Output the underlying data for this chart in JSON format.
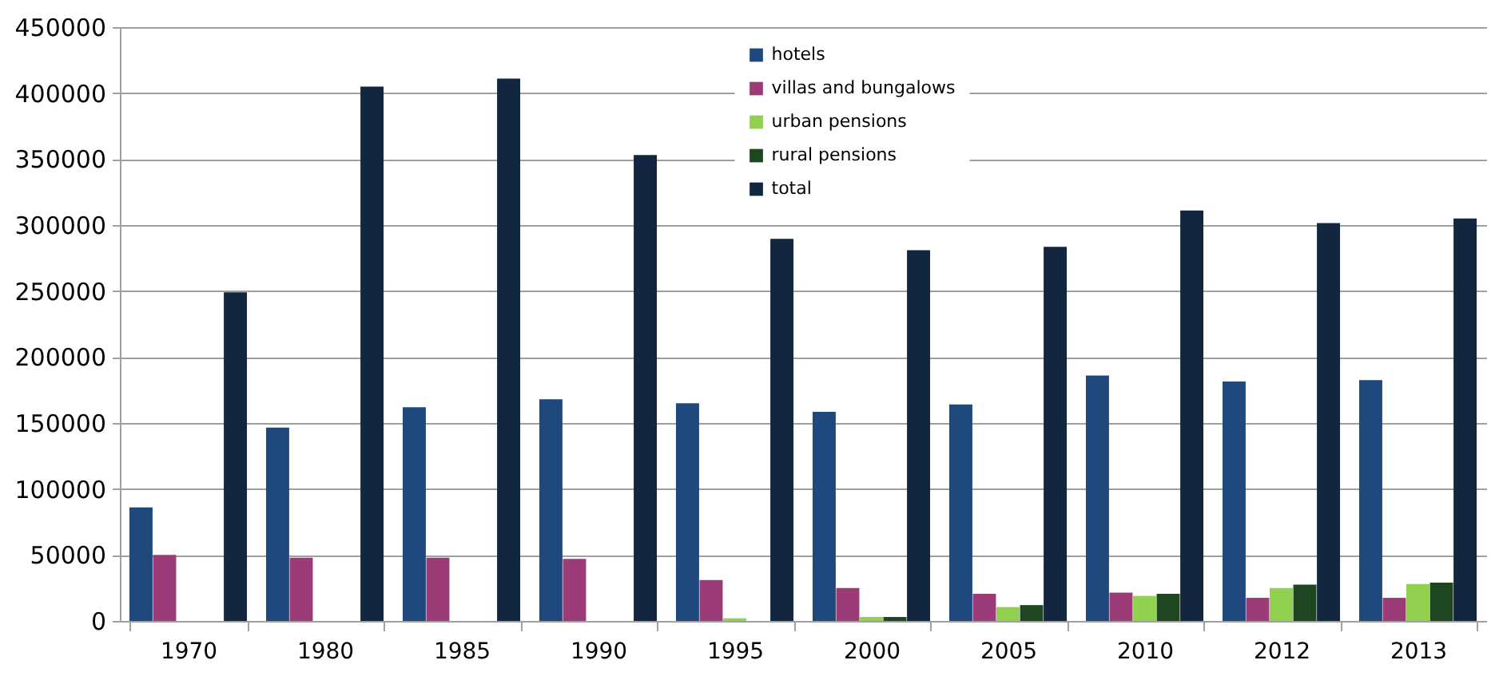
{
  "chart_data": {
    "type": "bar",
    "categories": [
      "1970",
      "1980",
      "1985",
      "1990",
      "1995",
      "2000",
      "2005",
      "2010",
      "2012",
      "2013"
    ],
    "series": [
      {
        "name": "hotels",
        "color": "#1f497d",
        "values": [
          86000,
          146500,
          162000,
          168000,
          165000,
          158500,
          164000,
          186000,
          181500,
          182500
        ]
      },
      {
        "name": "villas and bungalows",
        "color": "#9b3c78",
        "values": [
          50000,
          48000,
          48000,
          47000,
          31000,
          25000,
          20500,
          21500,
          17500,
          17500
        ]
      },
      {
        "name": "urban pensions",
        "color": "#92d050",
        "values": [
          null,
          null,
          null,
          null,
          2000,
          3000,
          10500,
          19000,
          25000,
          28000
        ]
      },
      {
        "name": "rural pensions",
        "color": "#1e4620",
        "values": [
          null,
          null,
          null,
          null,
          null,
          3000,
          12000,
          20500,
          27500,
          29000
        ]
      },
      {
        "name": "total",
        "color": "#12263f",
        "values": [
          249000,
          405000,
          411000,
          353000,
          289500,
          281000,
          283500,
          311000,
          301500,
          305000
        ]
      }
    ],
    "ylim": [
      0,
      450000
    ],
    "yticks": [
      0,
      50000,
      100000,
      150000,
      200000,
      250000,
      300000,
      350000,
      400000,
      450000
    ],
    "grid": "y",
    "legend": "top"
  }
}
